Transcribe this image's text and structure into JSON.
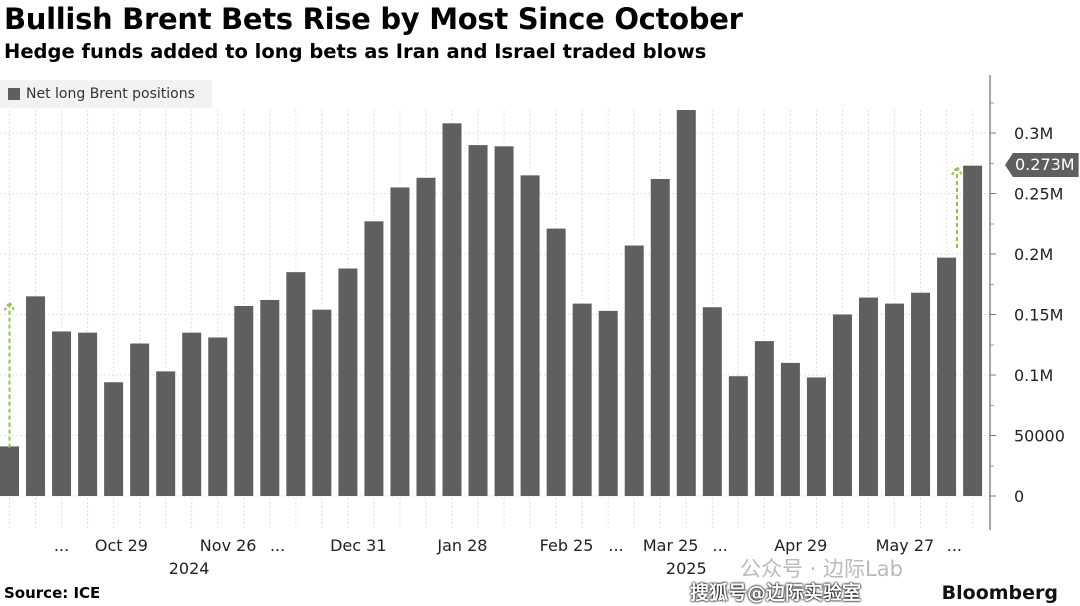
{
  "chart_data": {
    "type": "bar",
    "title": "Bullish Brent Bets Rise by Most Since October",
    "subtitle": "Hedge funds added to long bets as Iran and Israel traded blows",
    "legend": [
      "Net long Brent positions"
    ],
    "legend_placement": "top-left",
    "series": [
      {
        "name": "Net long Brent positions",
        "color": "#5f5f5f",
        "values": [
          0.041,
          0.165,
          0.136,
          0.135,
          0.094,
          0.126,
          0.103,
          0.135,
          0.131,
          0.157,
          0.162,
          0.185,
          0.154,
          0.188,
          0.227,
          0.255,
          0.263,
          0.308,
          0.29,
          0.289,
          0.265,
          0.221,
          0.159,
          0.153,
          0.207,
          0.262,
          0.319,
          0.156,
          0.099,
          0.128,
          0.11,
          0.098,
          0.15,
          0.164,
          0.159,
          0.168,
          0.197,
          0.273
        ]
      }
    ],
    "value_unit": "millions of contracts",
    "ylim": [
      -0.03,
      0.34
    ],
    "yticks": [
      {
        "value": 0.3,
        "label": "0.3M"
      },
      {
        "value": 0.25,
        "label": "0.25M"
      },
      {
        "value": 0.2,
        "label": "0.2M"
      },
      {
        "value": 0.15,
        "label": "0.15M"
      },
      {
        "value": 0.1,
        "label": "0.1M"
      },
      {
        "value": 0.05,
        "label": "50000"
      },
      {
        "value": 0,
        "label": "0"
      }
    ],
    "xticks": [
      {
        "bar": 2,
        "label": "..."
      },
      {
        "bar": 4.3,
        "label": "Oct 29"
      },
      {
        "bar": 8.4,
        "label": "Nov 26"
      },
      {
        "bar": 10.3,
        "label": "..."
      },
      {
        "bar": 13.4,
        "label": "Dec 31"
      },
      {
        "bar": 17.4,
        "label": "Jan 28"
      },
      {
        "bar": 21.4,
        "label": "Feb 25"
      },
      {
        "bar": 23.3,
        "label": "..."
      },
      {
        "bar": 25.4,
        "label": "Mar 25"
      },
      {
        "bar": 27.3,
        "label": "..."
      },
      {
        "bar": 30.4,
        "label": "Apr 29"
      },
      {
        "bar": 34.4,
        "label": "May 27"
      },
      {
        "bar": 36.3,
        "label": "..."
      }
    ],
    "years": [
      {
        "bar": 6.9,
        "label": "2024"
      },
      {
        "bar": 26,
        "label": "2025"
      }
    ],
    "last_value_label": "0.273M",
    "annotations": [
      {
        "type": "arrow",
        "bar": 0,
        "from": 0.04,
        "to": 0.16,
        "color": "#8dc63f"
      },
      {
        "type": "arrow",
        "bar": 36.4,
        "from": 0.205,
        "to": 0.272,
        "color": "#8dc63f"
      }
    ],
    "grid": true
  },
  "footer": {
    "source": "Source: ICE",
    "brand": "Bloomberg"
  },
  "watermarks": {
    "wechat": "公众号 · 边际Lab",
    "sohu": "搜狐号@边际实验室"
  }
}
